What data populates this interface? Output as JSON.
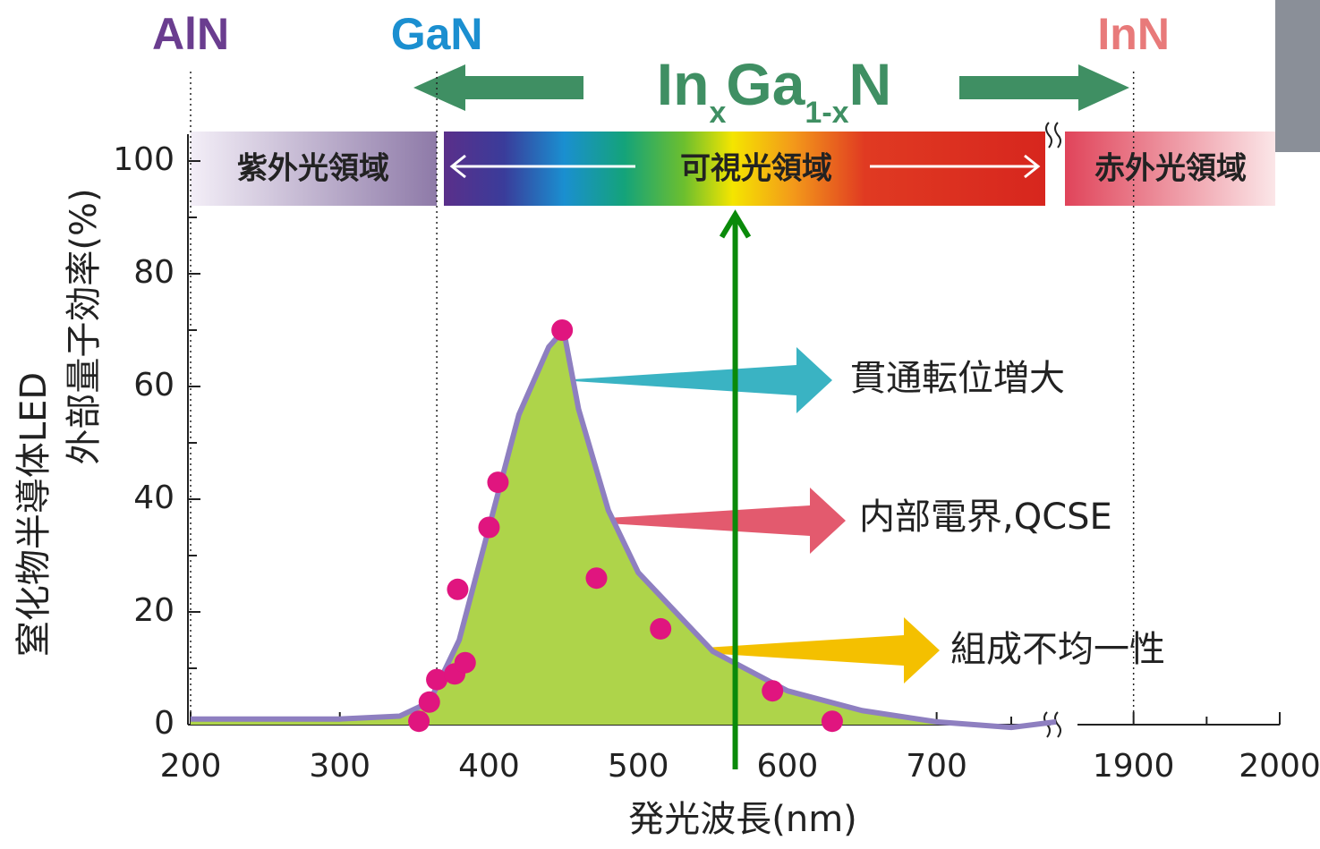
{
  "chart_data": {
    "type": "scatter",
    "x_label": "発光波長(nm)",
    "y_label_lines": [
      "窒化物半導体LED",
      "外部量子効率(%)"
    ],
    "xlim": [
      200,
      2000
    ],
    "axis_break": [
      780,
      1880
    ],
    "xticks": [
      200,
      300,
      400,
      500,
      600,
      700,
      1900,
      2000
    ],
    "x_minor_ticks": [
      250,
      350,
      450,
      550,
      650,
      750,
      1950
    ],
    "ylim": [
      0,
      100
    ],
    "yticks": [
      0,
      20,
      40,
      60,
      80,
      100
    ],
    "y_minor_ticks": [
      10,
      30,
      50,
      70,
      90
    ],
    "curve": {
      "color": "#8e7fc0",
      "fill": "#aed44a",
      "x": [
        200,
        300,
        340,
        360,
        380,
        400,
        420,
        440,
        450,
        460,
        480,
        500,
        550,
        600,
        650,
        700,
        750,
        780
      ],
      "values": [
        1,
        1,
        1.5,
        4,
        15,
        35,
        55,
        67,
        70,
        56,
        38,
        27,
        13,
        6,
        2.5,
        0.5,
        -0.5,
        0.5
      ]
    },
    "points": {
      "color": "#e0157f",
      "x": [
        353,
        360,
        365,
        377,
        384,
        379,
        400,
        406,
        449,
        472,
        515,
        590,
        630
      ],
      "values": [
        0.6,
        4,
        8,
        9,
        11,
        24,
        35,
        43,
        70,
        26,
        17,
        6,
        0.6
      ]
    },
    "materials": [
      {
        "label": "AlN",
        "x": 200,
        "color": "#6a3d8f"
      },
      {
        "label": "GaN",
        "x": 365,
        "color": "#1b8fd0"
      },
      {
        "label": "InN",
        "x": 1900,
        "color": "#e87a7a"
      }
    ],
    "formula": [
      "In",
      "x",
      "Ga",
      "1-x",
      "N"
    ],
    "regions": [
      "紫外光領域",
      "可視光領域",
      "赤外光領域"
    ],
    "annotations": [
      "貫通転位増大",
      "内部電界,QCSE",
      "組成不均一性"
    ],
    "marker_x": 565
  }
}
